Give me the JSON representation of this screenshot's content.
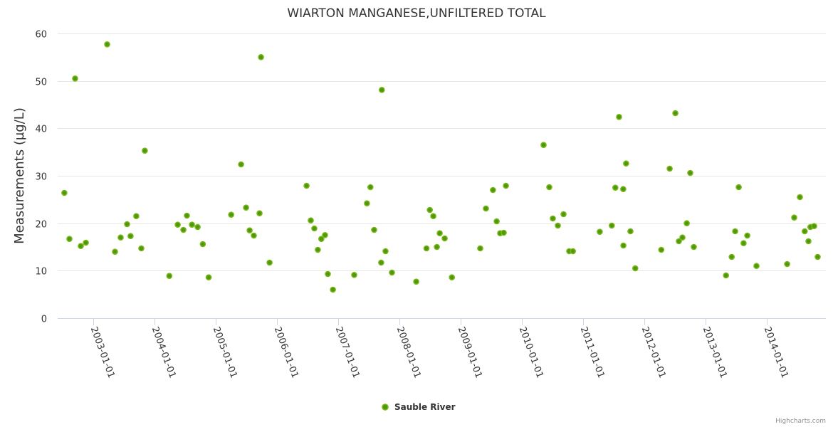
{
  "chart_data": {
    "type": "scatter",
    "title": "WIARTON MANGANESE,UNFILTERED TOTAL",
    "xlabel": "",
    "ylabel": "Measurements (µg/L)",
    "ylim": [
      0,
      60
    ],
    "yticks": [
      "0",
      "10",
      "20",
      "30",
      "40",
      "50",
      "60"
    ],
    "xlim": [
      "2002-06-03",
      "2014-12-20"
    ],
    "xticks": [
      "2003-01-01",
      "2004-01-01",
      "2005-01-01",
      "2006-01-01",
      "2007-01-01",
      "2008-01-01",
      "2009-01-01",
      "2010-01-01",
      "2011-01-01",
      "2012-01-01",
      "2013-01-01",
      "2014-01-01"
    ],
    "grid": true,
    "legend_position": "bottom-center",
    "credits": "Highcharts.com",
    "series": [
      {
        "name": "Sauble River",
        "color": "#7cb518",
        "marker_fill": "#4a9a0a",
        "points": [
          [
            "2002-07-13",
            26.4
          ],
          [
            "2002-08-12",
            16.7
          ],
          [
            "2002-09-15",
            50.5
          ],
          [
            "2002-10-19",
            15.2
          ],
          [
            "2002-11-18",
            15.9
          ],
          [
            "2003-03-25",
            57.7
          ],
          [
            "2003-05-11",
            14.0
          ],
          [
            "2003-06-14",
            17.0
          ],
          [
            "2003-07-22",
            19.8
          ],
          [
            "2003-08-12",
            17.3
          ],
          [
            "2003-09-15",
            21.5
          ],
          [
            "2003-10-15",
            14.7
          ],
          [
            "2003-11-05",
            35.3
          ],
          [
            "2004-03-30",
            8.9
          ],
          [
            "2004-05-19",
            19.7
          ],
          [
            "2004-06-22",
            18.6
          ],
          [
            "2004-07-13",
            21.6
          ],
          [
            "2004-08-12",
            19.7
          ],
          [
            "2004-09-15",
            19.2
          ],
          [
            "2004-10-16",
            15.6
          ],
          [
            "2004-11-20",
            8.6
          ],
          [
            "2005-04-03",
            21.8
          ],
          [
            "2005-06-01",
            32.4
          ],
          [
            "2005-07-01",
            23.3
          ],
          [
            "2005-07-22",
            18.5
          ],
          [
            "2005-08-16",
            17.4
          ],
          [
            "2005-09-19",
            22.1
          ],
          [
            "2005-09-28",
            55.0
          ],
          [
            "2005-11-18",
            11.7
          ],
          [
            "2006-06-27",
            27.9
          ],
          [
            "2006-07-22",
            20.6
          ],
          [
            "2006-08-12",
            18.9
          ],
          [
            "2006-09-02",
            14.4
          ],
          [
            "2006-09-23",
            16.7
          ],
          [
            "2006-10-15",
            17.5
          ],
          [
            "2006-11-01",
            9.3
          ],
          [
            "2006-12-01",
            6.0
          ],
          [
            "2007-04-07",
            9.1
          ],
          [
            "2007-06-22",
            24.2
          ],
          [
            "2007-07-13",
            27.6
          ],
          [
            "2007-08-04",
            18.6
          ],
          [
            "2007-09-15",
            11.7
          ],
          [
            "2007-09-19",
            48.1
          ],
          [
            "2007-10-11",
            14.1
          ],
          [
            "2007-11-18",
            9.6
          ],
          [
            "2008-04-11",
            7.7
          ],
          [
            "2008-06-11",
            14.7
          ],
          [
            "2008-07-01",
            22.8
          ],
          [
            "2008-07-22",
            21.5
          ],
          [
            "2008-08-12",
            15.0
          ],
          [
            "2008-08-29",
            17.9
          ],
          [
            "2008-09-28",
            16.8
          ],
          [
            "2008-11-10",
            8.6
          ],
          [
            "2009-04-28",
            14.7
          ],
          [
            "2009-06-01",
            23.1
          ],
          [
            "2009-07-13",
            27.0
          ],
          [
            "2009-08-04",
            20.4
          ],
          [
            "2009-08-25",
            17.9
          ],
          [
            "2009-09-15",
            18.0
          ],
          [
            "2009-09-28",
            27.9
          ],
          [
            "2010-05-11",
            36.5
          ],
          [
            "2010-06-14",
            27.6
          ],
          [
            "2010-07-05",
            21.0
          ],
          [
            "2010-08-04",
            19.5
          ],
          [
            "2010-09-07",
            21.9
          ],
          [
            "2010-10-11",
            14.1
          ],
          [
            "2010-11-02",
            14.1
          ],
          [
            "2011-04-11",
            18.2
          ],
          [
            "2011-06-22",
            19.5
          ],
          [
            "2011-07-13",
            27.5
          ],
          [
            "2011-08-04",
            42.4
          ],
          [
            "2011-08-29",
            27.2
          ],
          [
            "2011-08-30",
            15.3
          ],
          [
            "2011-09-15",
            32.6
          ],
          [
            "2011-10-11",
            18.3
          ],
          [
            "2011-11-09",
            10.5
          ],
          [
            "2012-04-12",
            14.4
          ],
          [
            "2012-06-01",
            31.5
          ],
          [
            "2012-07-05",
            43.2
          ],
          [
            "2012-07-26",
            16.2
          ],
          [
            "2012-08-16",
            17.0
          ],
          [
            "2012-09-11",
            20.0
          ],
          [
            "2012-10-02",
            30.6
          ],
          [
            "2012-10-23",
            15.0
          ],
          [
            "2013-05-03",
            9.0
          ],
          [
            "2013-06-06",
            12.9
          ],
          [
            "2013-06-27",
            18.3
          ],
          [
            "2013-07-18",
            27.6
          ],
          [
            "2013-08-16",
            15.8
          ],
          [
            "2013-09-07",
            17.4
          ],
          [
            "2013-11-01",
            11.0
          ],
          [
            "2014-05-03",
            11.4
          ],
          [
            "2014-06-14",
            21.2
          ],
          [
            "2014-07-18",
            25.5
          ],
          [
            "2014-08-16",
            18.3
          ],
          [
            "2014-09-07",
            16.2
          ],
          [
            "2014-09-19",
            19.2
          ],
          [
            "2014-10-11",
            19.4
          ],
          [
            "2014-11-01",
            12.9
          ]
        ]
      }
    ]
  }
}
